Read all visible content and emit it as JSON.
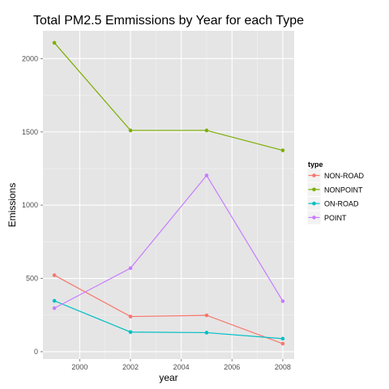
{
  "chart_data": {
    "type": "line",
    "title": "Total PM2.5 Emmissions by Year for each Type",
    "xlabel": "year",
    "ylabel": "Emissions",
    "x": [
      1999,
      2002,
      2005,
      2008
    ],
    "xlim": [
      1998.55,
      2008.45
    ],
    "ylim": [
      -50,
      2190
    ],
    "xticks": [
      2000,
      2002,
      2004,
      2006,
      2008
    ],
    "yticks": [
      0,
      500,
      1000,
      1500,
      2000
    ],
    "grid": true,
    "legend": {
      "title": "type",
      "placement": "right"
    },
    "series": [
      {
        "name": "NON-ROAD",
        "color": "#F8766D",
        "values": [
          522,
          240,
          248,
          55
        ]
      },
      {
        "name": "NONPOINT",
        "color": "#7CAE00",
        "values": [
          2108,
          1510,
          1510,
          1374
        ]
      },
      {
        "name": "ON-ROAD",
        "color": "#00BFC4",
        "values": [
          347,
          134,
          130,
          89
        ]
      },
      {
        "name": "POINT",
        "color": "#C77CFF",
        "values": [
          297,
          570,
          1203,
          345
        ]
      }
    ]
  }
}
